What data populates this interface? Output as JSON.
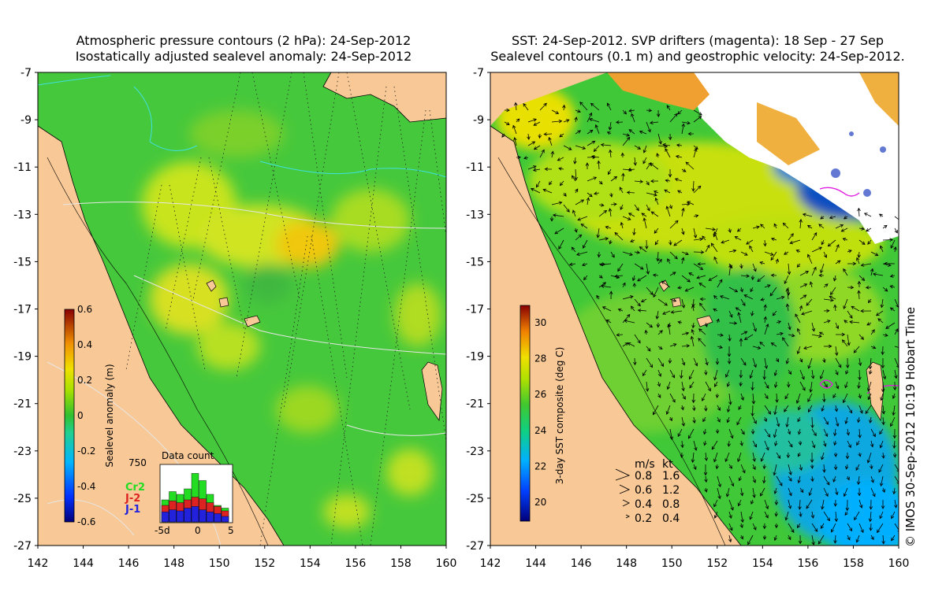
{
  "left": {
    "title_line1": "Atmospheric pressure contours (2 hPa): 24-Sep-2012",
    "title_line2": "Isostatically adjusted sealevel anomaly: 24-Sep-2012",
    "colorbar": {
      "label": "Sealevel anomaly (m)",
      "ticks": [
        "0.6",
        "0.4",
        "0.2",
        "0",
        "-0.2",
        "-0.4",
        "-0.6"
      ]
    },
    "inset": {
      "title": "Data count",
      "ymax": "750",
      "series": [
        "Cr2",
        "J-2",
        "J-1"
      ],
      "series_colors": [
        "#22dd22",
        "#dd2222",
        "#2222dd"
      ],
      "x_ticks": [
        "-5d",
        "0",
        "5"
      ],
      "green": [
        0.4,
        0.55,
        0.5,
        0.6,
        0.88,
        0.75,
        0.5,
        0.3,
        0.25
      ],
      "red": [
        0.3,
        0.38,
        0.35,
        0.4,
        0.45,
        0.42,
        0.35,
        0.28,
        0.2
      ],
      "blue": [
        0.18,
        0.22,
        0.2,
        0.25,
        0.28,
        0.22,
        0.18,
        0.15,
        0.1
      ]
    }
  },
  "right": {
    "title_line1": "SST: 24-Sep-2012. SVP drifters (magenta): 18 Sep - 27 Sep",
    "title_line2": "Sealevel contours (0.1 m) and geostrophic velocity: 24-Sep-2012.",
    "colorbar": {
      "label": "3-day SST composite (deg C)",
      "ticks": [
        "30",
        "28",
        "26",
        "24",
        "22",
        "20"
      ]
    },
    "speed_legend": {
      "header_ms": "m/s",
      "header_kt": "kt",
      "rows": [
        {
          "ms": "0.8",
          "kt": "1.6"
        },
        {
          "ms": "0.6",
          "kt": "1.2"
        },
        {
          "ms": "0.4",
          "kt": "0.8"
        },
        {
          "ms": "0.2",
          "kt": "0.4"
        }
      ]
    }
  },
  "axes": {
    "lat_ticks": [
      "-7",
      "-9",
      "-11",
      "-13",
      "-15",
      "-17",
      "-19",
      "-21",
      "-23",
      "-25",
      "-27"
    ],
    "lon_ticks": [
      "142",
      "144",
      "146",
      "148",
      "150",
      "152",
      "154",
      "156",
      "158",
      "160"
    ]
  },
  "credit": "© IMOS 30-Sep-2012 10:19 Hobart Time",
  "colors": {
    "land": "#f8c896",
    "sea_green": "#46c83c",
    "white_contour": "#e6e6e6",
    "cyan": "#40e0e0",
    "magenta": "#e020e0"
  }
}
